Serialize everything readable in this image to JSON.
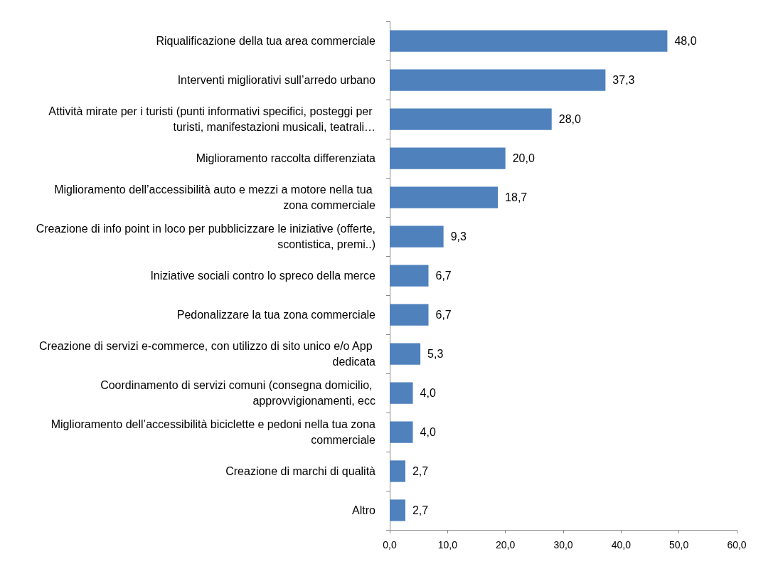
{
  "chart_data": {
    "type": "bar",
    "orientation": "horizontal",
    "grid": false,
    "categories": [
      "Riqualificazione della tua area commerciale",
      "Interventi migliorativi sull’arredo urbano",
      "Attività mirate per i turisti (punti informativi specifici, posteggi per turisti, manifestazioni musicali, teatrali…",
      "Miglioramento raccolta differenziata",
      "Miglioramento dell’accessibilità auto e mezzi a motore nella tua zona commerciale",
      "Creazione di info point in loco per pubblicizzare le iniziative (offerte, scontistica, premi..)",
      "Iniziative sociali contro lo spreco della merce",
      "Pedonalizzare la tua zona commerciale",
      "Creazione di servizi e-commerce, con utilizzo di sito unico e/o App dedicata",
      "Coordinamento di servizi comuni (consegna domicilio, approvvigionamenti, ecc",
      "Miglioramento dell’accessibilità biciclette e pedoni nella tua zona commerciale",
      "Creazione di marchi di qualità",
      "Altro"
    ],
    "values": [
      48.0,
      37.3,
      28.0,
      20.0,
      18.7,
      9.3,
      6.7,
      6.7,
      5.3,
      4.0,
      4.0,
      2.7,
      2.7
    ],
    "value_labels": [
      "48,0",
      "37,3",
      "28,0",
      "20,0",
      "18,7",
      "9,3",
      "6,7",
      "6,7",
      "5,3",
      "4,0",
      "4,0",
      "2,7",
      "2,7"
    ],
    "color": "#4f81bd",
    "xlim": [
      0,
      60
    ],
    "xticks": [
      {
        "value": 0,
        "label": "0,0"
      },
      {
        "value": 10,
        "label": "10,0"
      },
      {
        "value": 20,
        "label": "20,0"
      },
      {
        "value": 30,
        "label": "30,0"
      },
      {
        "value": 40,
        "label": "40,0"
      },
      {
        "value": 50,
        "label": "50,0"
      },
      {
        "value": 60,
        "label": "60,0"
      }
    ]
  }
}
